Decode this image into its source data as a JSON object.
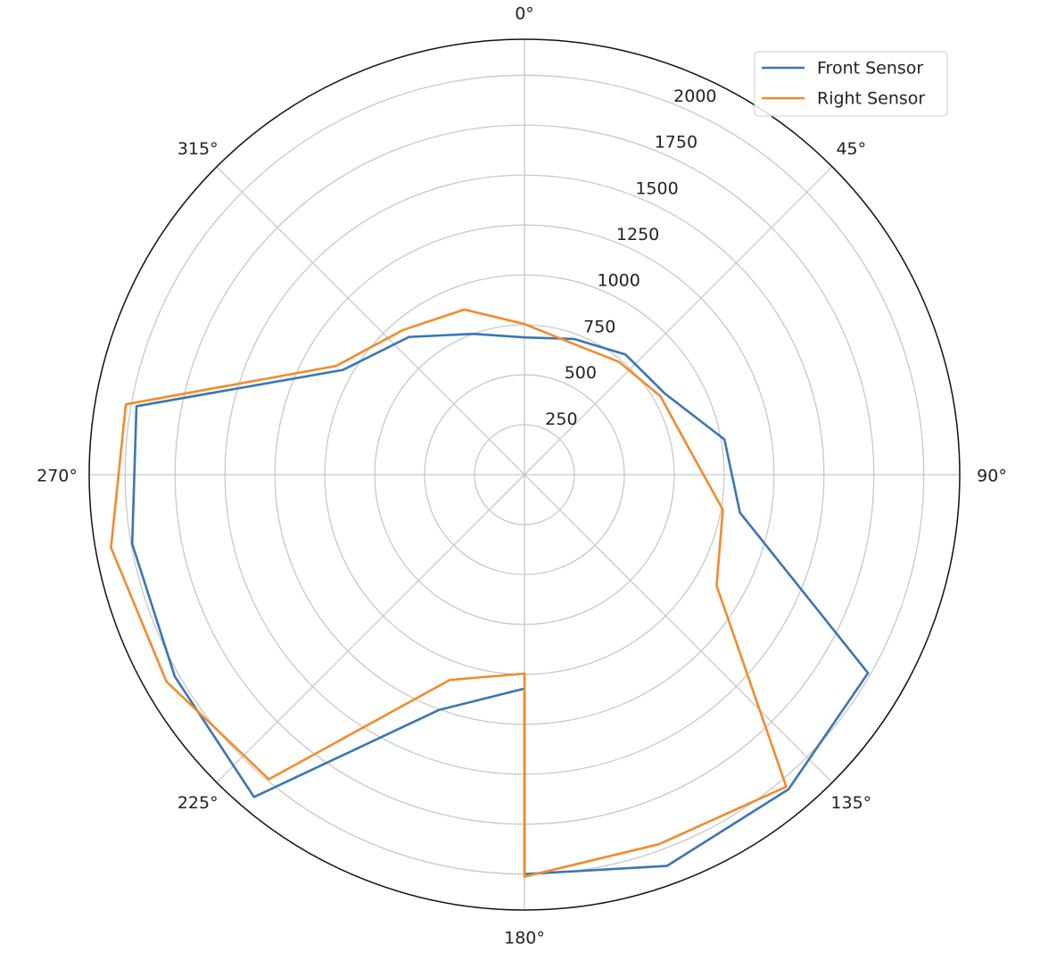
{
  "chart_data": {
    "type": "polar-line",
    "x": [
      0,
      20,
      40,
      60,
      80,
      100,
      120,
      140,
      160,
      180,
      180,
      200,
      220,
      240,
      260,
      280,
      300,
      320,
      340,
      360
    ],
    "series": [
      {
        "name": "Front Sensor",
        "color": "#3a76b4",
        "values": [
          687,
          723,
          786,
          812,
          1017,
          1096,
          1987,
          2057,
          2085,
          2000,
          1071,
          1254,
          2107,
          2022,
          1995,
          1973,
          1049,
          900,
          750,
          687
        ]
      },
      {
        "name": "Right Sensor",
        "color": "#f28b2c",
        "values": [
          754,
          700,
          737,
          786,
          829,
          1009,
          1111,
          2040,
          1969,
          2013,
          996,
          1094,
          1991,
          2071,
          2103,
          2027,
          1089,
          946,
          880,
          754
        ]
      }
    ],
    "xlim": [
      0,
      360
    ],
    "xticks": [
      {
        "value": 0,
        "label": "0°"
      },
      {
        "value": 45,
        "label": "45°"
      },
      {
        "value": 90,
        "label": "90°"
      },
      {
        "value": 135,
        "label": "135°"
      },
      {
        "value": 180,
        "label": "180°"
      },
      {
        "value": 225,
        "label": "225°"
      },
      {
        "value": 270,
        "label": "270°"
      },
      {
        "value": 315,
        "label": "315°"
      }
    ],
    "ylim": [
      0,
      2180
    ],
    "yticks": [
      250,
      500,
      750,
      1000,
      1250,
      1500,
      1750,
      2000
    ],
    "grid": true,
    "legend": "upper-right"
  }
}
